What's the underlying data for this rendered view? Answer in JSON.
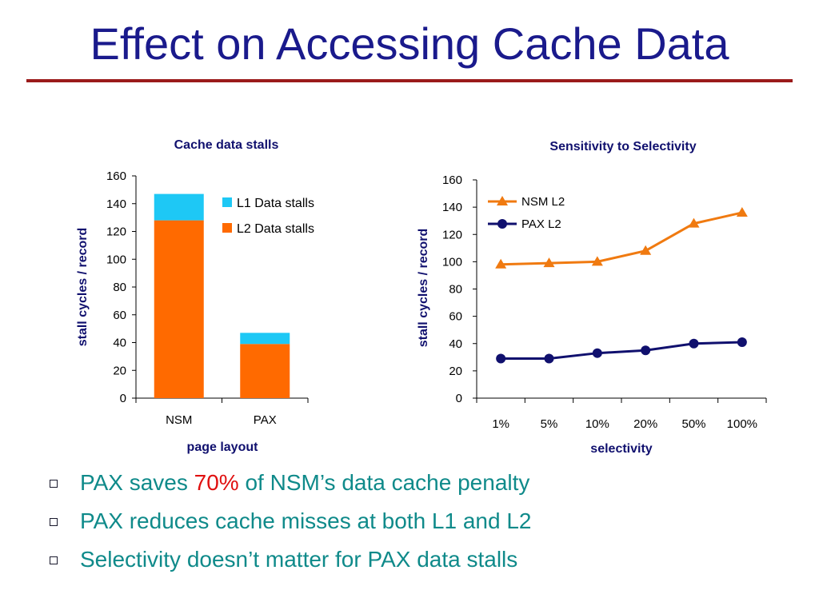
{
  "slide": {
    "title": "Effect on Accessing Cache Data",
    "accent_color": "#9b1b1b",
    "title_color": "#1a1a8c"
  },
  "bullets": [
    {
      "pre": "PAX saves ",
      "highlight": "70%",
      "post": " of NSM’s data cache penalty"
    },
    {
      "text": "PAX reduces cache misses at both L1 and L2"
    },
    {
      "text": "Selectivity doesn’t matter for PAX data stalls"
    }
  ],
  "chart_data": [
    {
      "type": "bar",
      "stacked": true,
      "title": "Cache data stalls",
      "xlabel": "page layout",
      "ylabel": "stall cycles / record",
      "categories": [
        "NSM",
        "PAX"
      ],
      "ylim": [
        0,
        160
      ],
      "yticks": [
        0,
        20,
        40,
        60,
        80,
        100,
        120,
        140,
        160
      ],
      "legend_position": "top-right",
      "series": [
        {
          "name": "L2 Data stalls",
          "values": [
            128,
            39
          ],
          "color": "#ff6a00"
        },
        {
          "name": "L1 Data stalls",
          "values": [
            19,
            8
          ],
          "color": "#1ec8f5"
        }
      ],
      "legend_order": [
        1,
        0
      ]
    },
    {
      "type": "line",
      "title": "Sensitivity to Selectivity",
      "xlabel": "selectivity",
      "ylabel": "stall cycles / record",
      "categories": [
        "1%",
        "5%",
        "10%",
        "20%",
        "50%",
        "100%"
      ],
      "ylim": [
        0,
        160
      ],
      "yticks": [
        0,
        20,
        40,
        60,
        80,
        100,
        120,
        140,
        160
      ],
      "legend_position": "top-left",
      "series": [
        {
          "name": "NSM L2",
          "values": [
            98,
            99,
            100,
            108,
            128,
            136
          ],
          "color": "#f07a10",
          "marker": "triangle"
        },
        {
          "name": "PAX L2",
          "values": [
            29,
            29,
            33,
            35,
            40,
            41
          ],
          "color": "#10106e",
          "marker": "circle"
        }
      ]
    }
  ]
}
